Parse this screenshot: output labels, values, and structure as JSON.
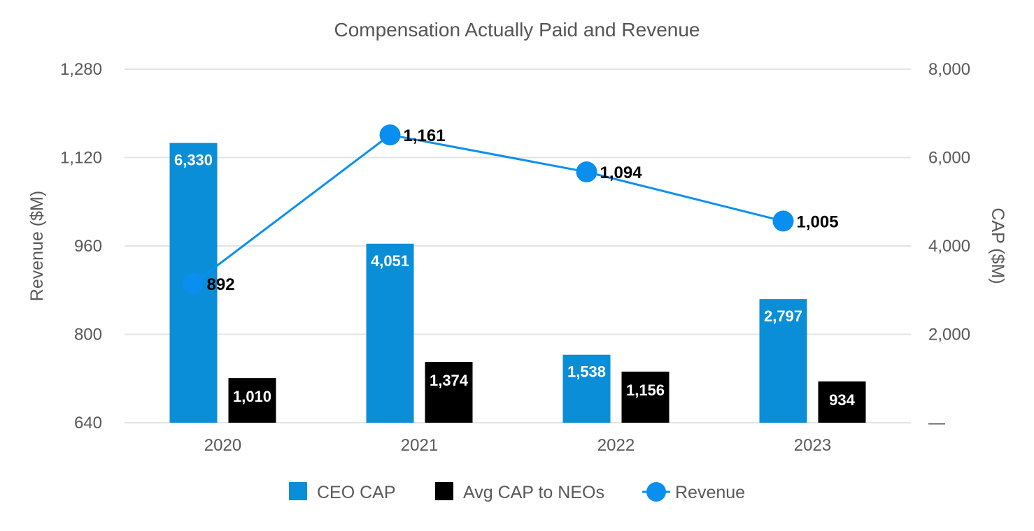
{
  "chart_data": {
    "type": "bar",
    "title": "Compensation Actually Paid and Revenue",
    "categories": [
      "2020",
      "2021",
      "2022",
      "2023"
    ],
    "y_left": {
      "label": "Revenue ($M)",
      "ticks": [
        "640",
        "800",
        "960",
        "1,120",
        "1,280"
      ],
      "tick_values": [
        640,
        800,
        960,
        1120,
        1280
      ],
      "range": [
        640,
        1280
      ]
    },
    "y_right": {
      "label": "CAP ($M)",
      "ticks": [
        "—",
        "2,000",
        "4,000",
        "6,000",
        "8,000"
      ],
      "tick_values": [
        0,
        2000,
        4000,
        6000,
        8000
      ],
      "range": [
        0,
        8000
      ]
    },
    "series": [
      {
        "name": "CEO CAP",
        "type": "bar",
        "axis": "right",
        "color": "#0B8ED8",
        "values": [
          6330,
          4051,
          1538,
          2797
        ],
        "labels": [
          "6,330",
          "4,051",
          "1,538",
          "2,797"
        ]
      },
      {
        "name": "Avg CAP to NEOs",
        "type": "bar",
        "axis": "right",
        "color": "#000000",
        "values": [
          1010,
          1374,
          1156,
          934
        ],
        "labels": [
          "1,010",
          "1,374",
          "1,156",
          "934"
        ]
      },
      {
        "name": "Revenue",
        "type": "line",
        "axis": "left",
        "color": "#0A8FF0",
        "values": [
          892,
          1161,
          1094,
          1005
        ],
        "labels": [
          "892",
          "1,161",
          "1,094",
          "1,005"
        ]
      }
    ],
    "grid": true,
    "legend_position": "bottom"
  }
}
